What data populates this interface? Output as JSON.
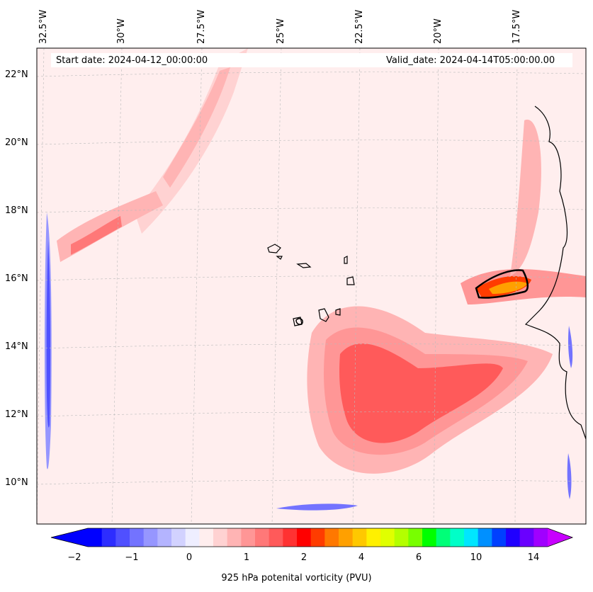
{
  "map": {
    "start_date": "Start date: 2024-04-12_00:00:00",
    "valid_date": "Valid_date: 2024-04-14T05:00:00.00",
    "lon_labels": [
      "32.5°W",
      "30°W",
      "27.5°W",
      "25°W",
      "22.5°W",
      "20°W",
      "17.5°W"
    ],
    "lat_labels": [
      "22°N",
      "20°N",
      "18°N",
      "16°N",
      "14°N",
      "12°N",
      "10°N"
    ],
    "colorbar": {
      "label": "925 hPa potenital vorticity (PVU)",
      "ticks": [
        "−2",
        "−1",
        "0",
        "1",
        "2",
        "4",
        "6",
        "10",
        "14"
      ],
      "colors": [
        "#0000ff",
        "#2d2dff",
        "#5050ff",
        "#7373ff",
        "#9696ff",
        "#b4b4ff",
        "#d2d2ff",
        "#eeeeff",
        "#ffeeee",
        "#ffd2d2",
        "#ffb4b4",
        "#ff9696",
        "#ff7878",
        "#ff5a5a",
        "#ff3232",
        "#ff0000",
        "#ff3c00",
        "#ff7800",
        "#ffa000",
        "#ffc800",
        "#fff000",
        "#e0ff00",
        "#b4ff00",
        "#78ff00",
        "#00ff00",
        "#00ff78",
        "#00ffc8",
        "#00e6ff",
        "#0090ff",
        "#0040ff",
        "#2000ff",
        "#6a00ff",
        "#a000ff"
      ],
      "under_color": "#0000ff",
      "over_color": "#c800ff"
    }
  }
}
